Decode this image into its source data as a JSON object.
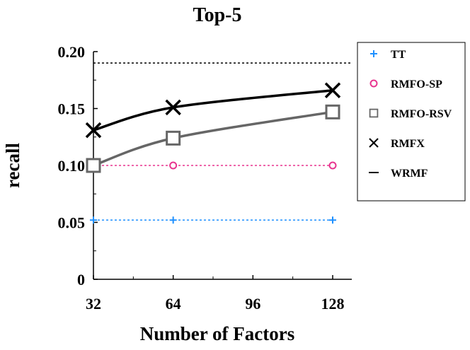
{
  "chart_data": {
    "type": "line",
    "title": "Top-5",
    "xlabel": "Number of Factors",
    "ylabel": "recall",
    "x": [
      32,
      64,
      128
    ],
    "xticks": [
      "32",
      "64",
      "96",
      "128"
    ],
    "xlim": [
      32,
      128
    ],
    "ylim": [
      0,
      0.2
    ],
    "yticks": [
      "0",
      "0.05",
      "0.10",
      "0.15",
      "0.20"
    ],
    "grid": false,
    "legend_position": "right",
    "series": [
      {
        "name": "TT",
        "values": [
          0.052,
          0.052,
          0.052
        ],
        "color": "#1e90ff",
        "marker": "plus",
        "line": "dotted"
      },
      {
        "name": "RMFO-SP",
        "values": [
          0.1,
          0.1,
          0.1
        ],
        "color": "#e8348f",
        "marker": "circle",
        "line": "dotted"
      },
      {
        "name": "RMFO-RSV",
        "values": [
          0.1,
          0.124,
          0.147
        ],
        "color": "#666666",
        "marker": "square",
        "line": "solid"
      },
      {
        "name": "RMFX",
        "values": [
          0.131,
          0.151,
          0.166
        ],
        "color": "#000000",
        "marker": "x",
        "line": "solid"
      },
      {
        "name": "WRMF",
        "values": [
          0.19,
          0.19,
          0.19
        ],
        "color": "#000000",
        "marker": "none",
        "line": "dotted"
      }
    ]
  }
}
